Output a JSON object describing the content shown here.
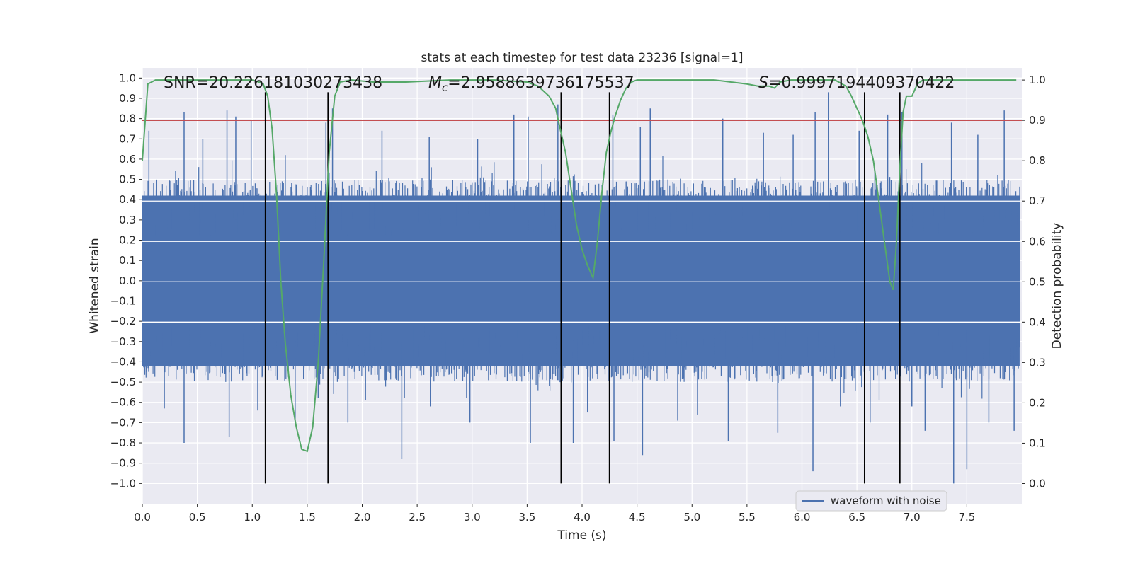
{
  "chart_data": {
    "type": "line",
    "title": "stats at each timestep for test data 23236 [signal=1]",
    "xlabel": "Time (s)",
    "ylabel_left": "Whitened strain",
    "ylabel_right": "Detection probability",
    "xlim": [
      0.0,
      8.0
    ],
    "ylim_left": [
      -1.1,
      1.05
    ],
    "ylim_right": [
      -0.05,
      1.03
    ],
    "xticks": [
      "0.0",
      "0.5",
      "1.0",
      "1.5",
      "2.0",
      "2.5",
      "3.0",
      "3.5",
      "4.0",
      "4.5",
      "5.0",
      "5.5",
      "6.0",
      "6.5",
      "7.0",
      "7.5"
    ],
    "xtick_values": [
      0.0,
      0.5,
      1.0,
      1.5,
      2.0,
      2.5,
      3.0,
      3.5,
      4.0,
      4.5,
      5.0,
      5.5,
      6.0,
      6.5,
      7.0,
      7.5
    ],
    "yticks_left": [
      "1.0",
      "0.9",
      "0.8",
      "0.7",
      "0.6",
      "0.5",
      "0.4",
      "0.3",
      "0.2",
      "0.1",
      "0.0",
      "−0.1",
      "−0.2",
      "−0.3",
      "−0.4",
      "−0.5",
      "−0.6",
      "−0.7",
      "−0.8",
      "−0.9",
      "−1.0"
    ],
    "ytick_left_values": [
      1.0,
      0.9,
      0.8,
      0.7,
      0.6,
      0.5,
      0.4,
      0.3,
      0.2,
      0.1,
      0.0,
      -0.1,
      -0.2,
      -0.3,
      -0.4,
      -0.5,
      -0.6,
      -0.7,
      -0.8,
      -0.9,
      -1.0
    ],
    "yticks_right": [
      "1.0",
      "0.9",
      "0.8",
      "0.7",
      "0.6",
      "0.5",
      "0.4",
      "0.3",
      "0.2",
      "0.1",
      "0.0"
    ],
    "ytick_right_values": [
      1.0,
      0.9,
      0.8,
      0.7,
      0.6,
      0.5,
      0.4,
      0.3,
      0.2,
      0.1,
      0.0
    ],
    "annotations": {
      "snr": "SNR=20.226181030273438",
      "mc_symbol": "M",
      "mc_sub": "c",
      "mc_value": "=2.9588639736175537",
      "s_symbol": "S",
      "s_value": "=0.9997194409370422"
    },
    "threshold": {
      "value": 0.9,
      "axis": "right",
      "color": "#c44e52"
    },
    "vertical_lines": [
      1.12,
      1.69,
      3.81,
      4.25,
      6.57,
      6.89
    ],
    "vertical_line_range": [
      -1.0,
      0.93
    ],
    "waveform": {
      "name": "waveform with noise",
      "color": "#4c72b0",
      "band_lower": -0.42,
      "band_upper": 0.42,
      "spikes_up": [
        [
          0.38,
          0.83
        ],
        [
          0.77,
          0.84
        ],
        [
          0.85,
          0.81
        ],
        [
          0.99,
          0.79
        ],
        [
          0.06,
          0.74
        ],
        [
          1.67,
          0.78
        ],
        [
          1.73,
          0.85
        ],
        [
          3.38,
          0.82
        ],
        [
          3.51,
          0.81
        ],
        [
          3.78,
          0.87
        ],
        [
          4.28,
          0.82
        ],
        [
          4.53,
          0.76
        ],
        [
          4.62,
          0.85
        ],
        [
          6.12,
          0.83
        ],
        [
          6.24,
          0.93
        ],
        [
          6.78,
          0.82
        ],
        [
          6.91,
          0.83
        ],
        [
          7.36,
          0.78
        ],
        [
          7.84,
          0.84
        ],
        [
          2.18,
          0.74
        ],
        [
          2.61,
          0.71
        ],
        [
          5.28,
          0.8
        ],
        [
          5.65,
          0.73
        ],
        [
          6.52,
          0.74
        ],
        [
          0.55,
          0.7
        ],
        [
          1.3,
          0.62
        ],
        [
          3.05,
          0.7
        ],
        [
          5.92,
          0.72
        ],
        [
          7.6,
          0.72
        ]
      ],
      "spikes_down": [
        [
          0.38,
          -0.8
        ],
        [
          0.79,
          -0.77
        ],
        [
          1.39,
          -0.7
        ],
        [
          1.6,
          -0.58
        ],
        [
          2.36,
          -0.88
        ],
        [
          3.53,
          -0.8
        ],
        [
          3.92,
          -0.8
        ],
        [
          4.29,
          -0.79
        ],
        [
          4.55,
          -0.86
        ],
        [
          5.33,
          -0.79
        ],
        [
          6.1,
          -0.94
        ],
        [
          7.38,
          -1.0
        ],
        [
          7.5,
          -0.93
        ],
        [
          7.93,
          -0.74
        ],
        [
          0.2,
          -0.63
        ],
        [
          1.87,
          -0.7
        ],
        [
          2.98,
          -0.7
        ],
        [
          4.87,
          -0.69
        ],
        [
          5.78,
          -0.75
        ],
        [
          6.62,
          -0.7
        ],
        [
          7.12,
          -0.74
        ],
        [
          7.7,
          -0.7
        ],
        [
          1.05,
          -0.64
        ],
        [
          2.62,
          -0.62
        ],
        [
          4.05,
          -0.65
        ],
        [
          5.05,
          -0.66
        ],
        [
          6.35,
          -0.62
        ],
        [
          7.0,
          -0.62
        ]
      ]
    },
    "probability": {
      "color": "#55a868",
      "x": [
        0.0,
        0.05,
        0.12,
        0.2,
        0.5,
        0.8,
        1.0,
        1.06,
        1.1,
        1.14,
        1.18,
        1.22,
        1.26,
        1.3,
        1.35,
        1.4,
        1.45,
        1.5,
        1.55,
        1.6,
        1.65,
        1.7,
        1.75,
        1.8,
        1.9,
        2.1,
        2.4,
        2.8,
        3.2,
        3.5,
        3.6,
        3.7,
        3.76,
        3.8,
        3.85,
        3.9,
        3.95,
        4.0,
        4.05,
        4.1,
        4.14,
        4.18,
        4.22,
        4.26,
        4.3,
        4.35,
        4.4,
        4.45,
        4.5,
        4.6,
        4.8,
        5.2,
        5.5,
        5.6,
        5.7,
        5.75,
        5.8,
        5.9,
        6.0,
        6.1,
        6.2,
        6.3,
        6.4,
        6.45,
        6.5,
        6.55,
        6.6,
        6.65,
        6.7,
        6.75,
        6.8,
        6.83,
        6.86,
        6.89,
        6.92,
        6.95,
        7.0,
        7.05,
        7.1,
        7.2,
        7.5,
        7.8,
        7.95
      ],
      "y": [
        0.8,
        0.99,
        1.0,
        1.0,
        1.0,
        1.0,
        1.0,
        0.995,
        0.99,
        0.96,
        0.88,
        0.72,
        0.5,
        0.35,
        0.22,
        0.14,
        0.085,
        0.08,
        0.14,
        0.3,
        0.55,
        0.82,
        0.96,
        0.995,
        1.0,
        0.995,
        0.995,
        1.0,
        1.0,
        0.995,
        0.985,
        0.96,
        0.93,
        0.88,
        0.82,
        0.73,
        0.64,
        0.58,
        0.54,
        0.51,
        0.6,
        0.72,
        0.82,
        0.87,
        0.91,
        0.95,
        0.98,
        0.995,
        1.0,
        1.0,
        1.0,
        1.0,
        0.99,
        0.985,
        0.985,
        0.98,
        0.995,
        1.0,
        1.0,
        1.0,
        1.0,
        1.0,
        0.985,
        0.96,
        0.93,
        0.9,
        0.86,
        0.8,
        0.7,
        0.6,
        0.5,
        0.48,
        0.6,
        0.78,
        0.92,
        0.96,
        0.96,
        0.99,
        1.0,
        1.0,
        1.0,
        1.0,
        1.0
      ]
    },
    "legend": {
      "label": "waveform with noise",
      "position": "lower-right"
    },
    "grid": true
  }
}
